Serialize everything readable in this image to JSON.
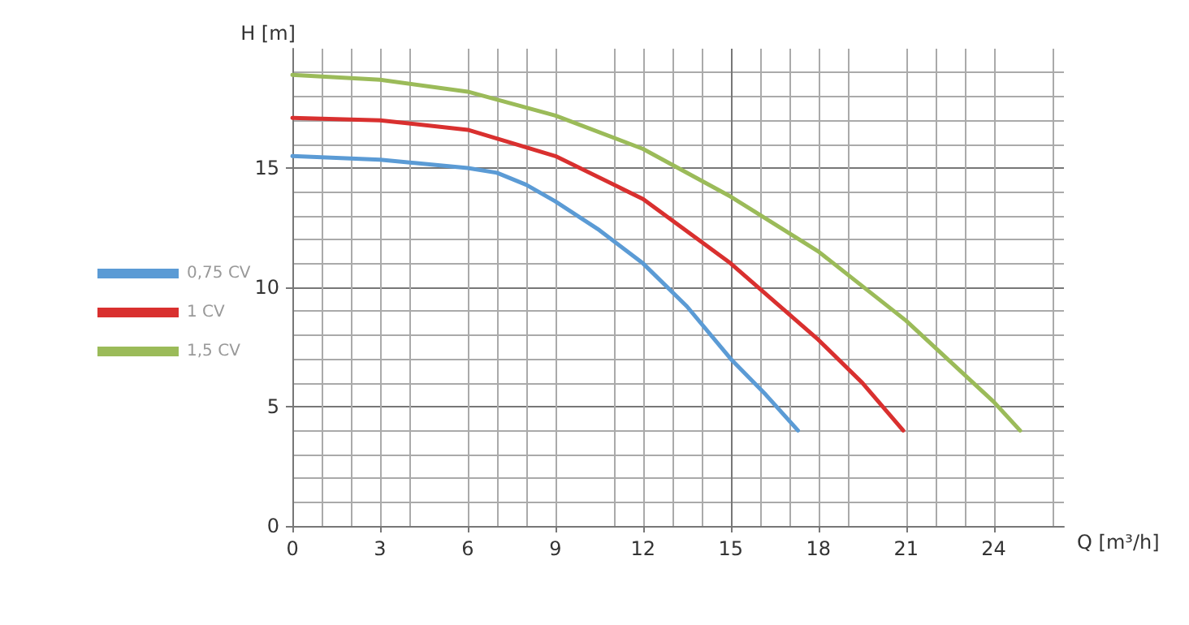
{
  "chart_data": {
    "type": "line",
    "xlabel": "Q [m³/h]",
    "ylabel": "H [m]",
    "xlim": [
      0,
      26.4
    ],
    "xticks": [
      0,
      3,
      6,
      9,
      12,
      15,
      18,
      21,
      24
    ],
    "ylim": [
      0,
      20
    ],
    "yticks": [
      0,
      5,
      10,
      15
    ],
    "grid": true,
    "legend": "left",
    "marker": "none",
    "line_style": "solid",
    "series": [
      {
        "name": "0,75 CV",
        "color": "#5b9bd5",
        "x": [
          0,
          3,
          6,
          7,
          8,
          9,
          10.5,
          12,
          13.5,
          15,
          16.2,
          17.3
        ],
        "values": [
          15.5,
          15.35,
          15.0,
          14.8,
          14.3,
          13.6,
          12.4,
          11.0,
          9.2,
          7.0,
          5.5,
          4.0
        ]
      },
      {
        "name": "1 CV",
        "color": "#d9302f",
        "x": [
          0,
          3,
          6,
          9,
          12,
          15,
          18,
          19.5,
          20.9
        ],
        "values": [
          17.1,
          17.0,
          16.6,
          15.5,
          13.7,
          11.0,
          7.8,
          6.0,
          4.0
        ]
      },
      {
        "name": "1,5 CV",
        "color": "#9bbb59",
        "x": [
          0,
          3,
          6,
          9,
          12,
          15,
          18,
          21,
          24,
          24.9
        ],
        "values": [
          18.9,
          18.7,
          18.2,
          17.2,
          15.8,
          13.8,
          11.5,
          8.6,
          5.2,
          4.0
        ]
      }
    ]
  }
}
